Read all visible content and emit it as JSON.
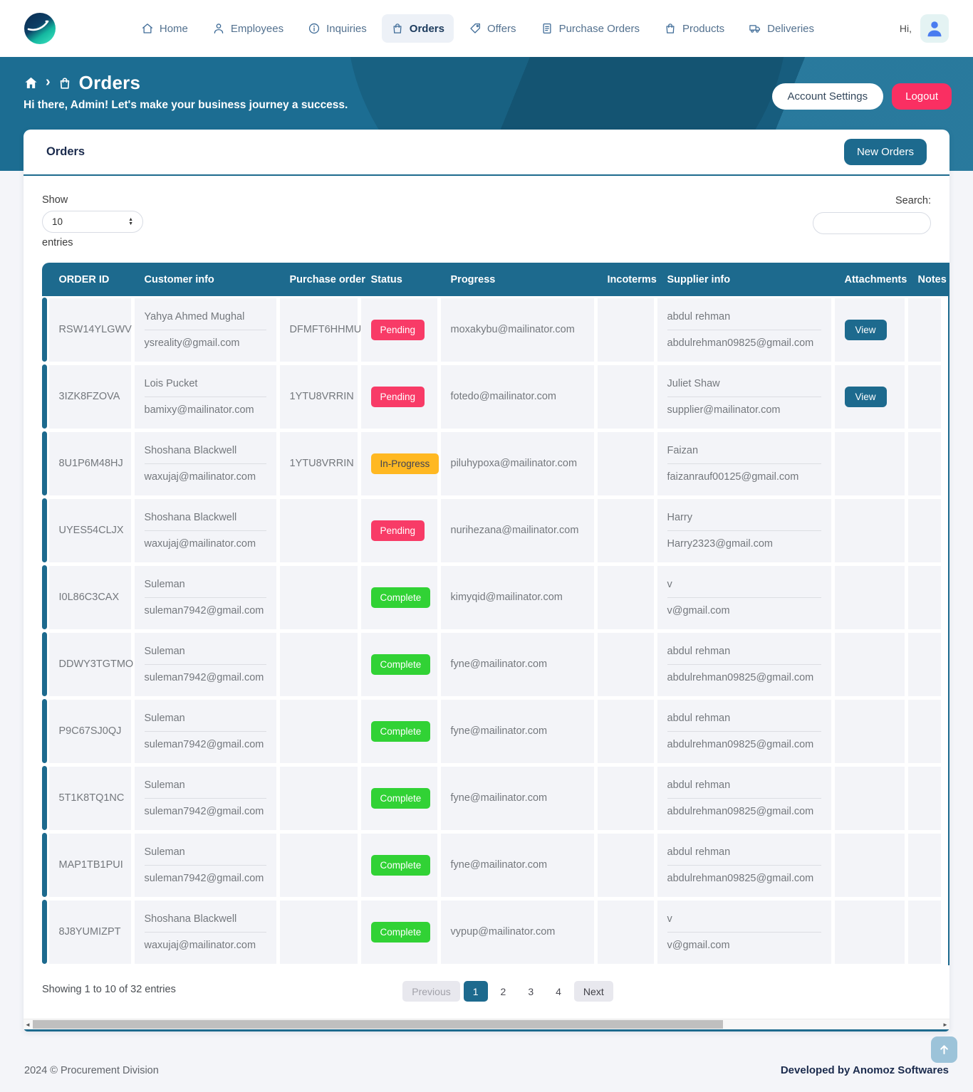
{
  "navbar": {
    "greeting": "Hi,",
    "items": [
      {
        "label": "Home"
      },
      {
        "label": "Employees"
      },
      {
        "label": "Inquiries"
      },
      {
        "label": "Orders",
        "active": true
      },
      {
        "label": "Offers"
      },
      {
        "label": "Purchase Orders"
      },
      {
        "label": "Products"
      },
      {
        "label": "Deliveries"
      }
    ]
  },
  "hero": {
    "breadcrumb_title": "Orders",
    "subtitle": "Hi there, Admin! Let's make your business journey a success.",
    "account_settings_label": "Account Settings",
    "logout_label": "Logout"
  },
  "card": {
    "title": "Orders",
    "new_orders_label": "New Orders",
    "show_label": "Show",
    "page_size": "10",
    "entries_label": "entries",
    "search_label": "Search:"
  },
  "table": {
    "headers": [
      "ORDER ID",
      "Customer info",
      "Purchase order",
      "Status",
      "Progress",
      "Incoterms",
      "Supplier info",
      "Attachments",
      "Notes"
    ],
    "view_label": "View",
    "rows": [
      {
        "id": "RSW14YLGWV",
        "customer_name": "Yahya Ahmed Mughal",
        "customer_email": "ysreality@gmail.com",
        "po": "DFMFT6HHMU",
        "status_label": "Pending",
        "status_type": "pending",
        "progress": "moxakybu@mailinator.com",
        "incoterms": "",
        "supplier_name": "abdul rehman",
        "supplier_email": "abdulrehman09825@gmail.com",
        "attachment": true,
        "notes": ""
      },
      {
        "id": "3IZK8FZOVA",
        "customer_name": "Lois Pucket",
        "customer_email": "bamixy@mailinator.com",
        "po": "1YTU8VRRIN",
        "status_label": "Pending",
        "status_type": "pending",
        "progress": "fotedo@mailinator.com",
        "incoterms": "",
        "supplier_name": "Juliet Shaw",
        "supplier_email": "supplier@mailinator.com",
        "attachment": true,
        "notes": ""
      },
      {
        "id": "8U1P6M48HJ",
        "customer_name": "Shoshana Blackwell",
        "customer_email": "waxujaj@mailinator.com",
        "po": "1YTU8VRRIN",
        "status_label": "In-Progress",
        "status_type": "in-progress",
        "progress": "piluhypoxa@mailinator.com",
        "incoterms": "",
        "supplier_name": "Faizan",
        "supplier_email": "faizanrauf00125@gmail.com",
        "attachment": false,
        "notes": ""
      },
      {
        "id": "UYES54CLJX",
        "customer_name": "Shoshana Blackwell",
        "customer_email": "waxujaj@mailinator.com",
        "po": "",
        "status_label": "Pending",
        "status_type": "pending",
        "progress": "nurihezana@mailinator.com",
        "incoterms": "",
        "supplier_name": "Harry",
        "supplier_email": "Harry2323@gmail.com",
        "attachment": false,
        "notes": ""
      },
      {
        "id": "I0L86C3CAX",
        "customer_name": "Suleman",
        "customer_email": "suleman7942@gmail.com",
        "po": "",
        "status_label": "Complete",
        "status_type": "complete",
        "progress": "kimyqid@mailinator.com",
        "incoterms": "",
        "supplier_name": "v",
        "supplier_email": "v@gmail.com",
        "attachment": false,
        "notes": ""
      },
      {
        "id": "DDWY3TGTMO",
        "customer_name": "Suleman",
        "customer_email": "suleman7942@gmail.com",
        "po": "",
        "status_label": "Complete",
        "status_type": "complete",
        "progress": "fyne@mailinator.com",
        "incoterms": "",
        "supplier_name": "abdul rehman",
        "supplier_email": "abdulrehman09825@gmail.com",
        "attachment": false,
        "notes": ""
      },
      {
        "id": "P9C67SJ0QJ",
        "customer_name": "Suleman",
        "customer_email": "suleman7942@gmail.com",
        "po": "",
        "status_label": "Complete",
        "status_type": "complete",
        "progress": "fyne@mailinator.com",
        "incoterms": "",
        "supplier_name": "abdul rehman",
        "supplier_email": "abdulrehman09825@gmail.com",
        "attachment": false,
        "notes": ""
      },
      {
        "id": "5T1K8TQ1NC",
        "customer_name": "Suleman",
        "customer_email": "suleman7942@gmail.com",
        "po": "",
        "status_label": "Complete",
        "status_type": "complete",
        "progress": "fyne@mailinator.com",
        "incoterms": "",
        "supplier_name": "abdul rehman",
        "supplier_email": "abdulrehman09825@gmail.com",
        "attachment": false,
        "notes": ""
      },
      {
        "id": "MAP1TB1PUI",
        "customer_name": "Suleman",
        "customer_email": "suleman7942@gmail.com",
        "po": "",
        "status_label": "Complete",
        "status_type": "complete",
        "progress": "fyne@mailinator.com",
        "incoterms": "",
        "supplier_name": "abdul rehman",
        "supplier_email": "abdulrehman09825@gmail.com",
        "attachment": false,
        "notes": ""
      },
      {
        "id": "8J8YUMIZPT",
        "customer_name": "Shoshana Blackwell",
        "customer_email": "waxujaj@mailinator.com",
        "po": "",
        "status_label": "Complete",
        "status_type": "complete",
        "progress": "vypup@mailinator.com",
        "incoterms": "",
        "supplier_name": "v",
        "supplier_email": "v@gmail.com",
        "attachment": false,
        "notes": ""
      }
    ]
  },
  "pagination": {
    "info": "Showing 1 to 10 of 32 entries",
    "previous_label": "Previous",
    "next_label": "Next",
    "pages": [
      "1",
      "2",
      "3",
      "4"
    ],
    "active_page": "1"
  },
  "footer": {
    "left": "2024  © Procurement Division",
    "right": "Developed by Anomoz Softwares"
  },
  "colors": {
    "accent": "#1d6a8e",
    "hero-bg": "#1c6d92",
    "pending": "#f83b67",
    "in-progress": "#ffb822",
    "complete": "#31d235",
    "logout": "#fa2f62",
    "page-bg": "#f4f5f9"
  }
}
